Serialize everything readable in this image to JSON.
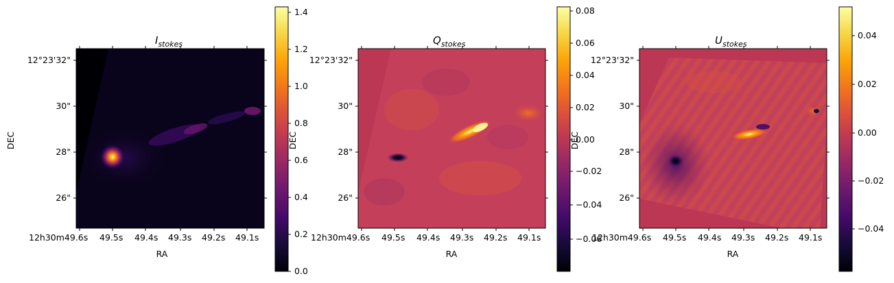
{
  "chart_data": [
    {
      "type": "heatmap",
      "title_main": "I",
      "title_sub": "stokes",
      "xlabel": "RA",
      "ylabel": "DEC",
      "x_ticks": [
        "12h30m49.6s",
        "49.5s",
        "49.4s",
        "49.3s",
        "49.2s",
        "49.1s"
      ],
      "y_ticks": [
        "12°23'32\"",
        "30\"",
        "28\"",
        "26\""
      ],
      "colorbar": {
        "colormap": "inferno",
        "vmin": 0.0,
        "vmax": 1.43,
        "ticks": [
          "0.0",
          "0.2",
          "0.4",
          "0.6",
          "0.8",
          "1.0",
          "1.2",
          "1.4"
        ]
      }
    },
    {
      "type": "heatmap",
      "title_main": "Q",
      "title_sub": "stokes",
      "xlabel": "RA",
      "ylabel": "DEC",
      "x_ticks": [
        "12h30m49.6s",
        "49.5s",
        "49.4s",
        "49.3s",
        "49.2s",
        "49.1s"
      ],
      "y_ticks": [
        "12°23'32\"",
        "30\"",
        "28\"",
        "26\""
      ],
      "colorbar": {
        "colormap": "inferno",
        "vmin": -0.073,
        "vmax": 0.082,
        "ticks": [
          "−0.06",
          "−0.04",
          "−0.02",
          "0.00",
          "0.02",
          "0.04",
          "0.06",
          "0.08"
        ]
      }
    },
    {
      "type": "heatmap",
      "title_main": "U",
      "title_sub": "stokes",
      "xlabel": "RA",
      "ylabel": "DEC",
      "x_ticks": [
        "12h30m49.6s",
        "49.5s",
        "49.4s",
        "49.3s",
        "49.2s",
        "49.1s"
      ],
      "y_ticks": [
        "12°23'32\"",
        "30\"",
        "28\"",
        "26\""
      ],
      "colorbar": {
        "colormap": "inferno",
        "vmin": -0.058,
        "vmax": 0.051,
        "ticks": [
          "−0.04",
          "−0.02",
          "0.00",
          "0.02",
          "0.04"
        ]
      }
    }
  ]
}
